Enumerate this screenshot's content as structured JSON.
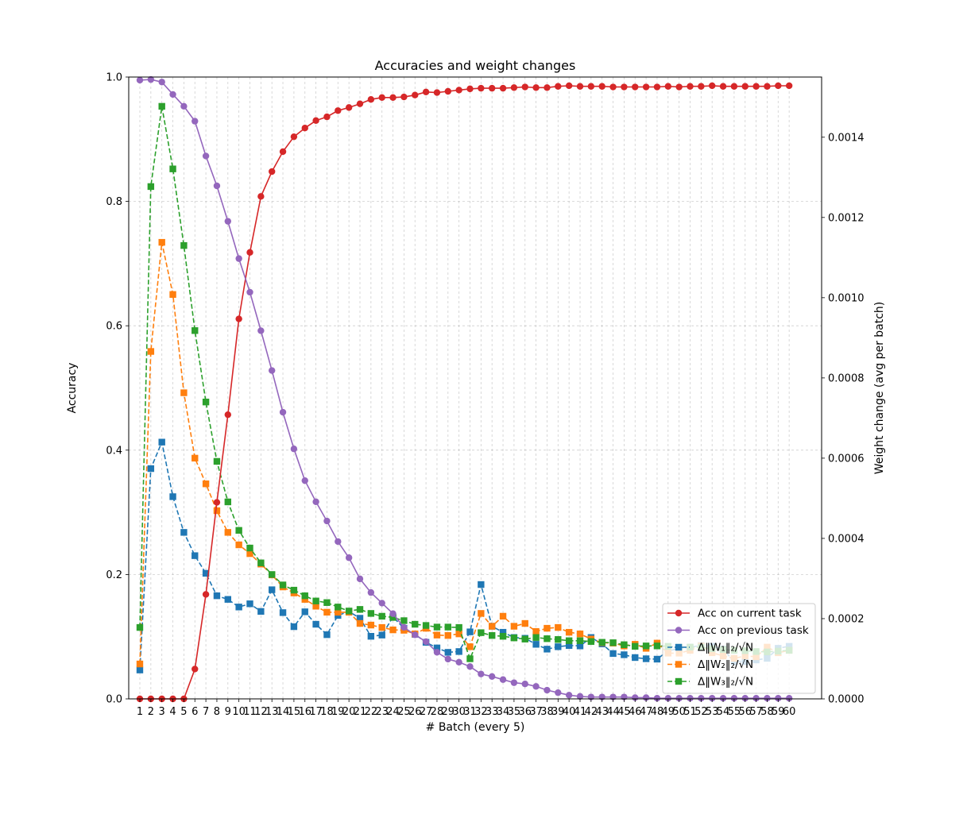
{
  "chart_data": {
    "type": "line",
    "title": "Accuracies and weight changes",
    "xlabel": "# Batch (every 5)",
    "ylabel_left": "Accuracy",
    "ylabel_right": "Weight change (avg per batch)",
    "ylim_left": [
      0,
      1
    ],
    "ylim_right": [
      0,
      0.00155
    ],
    "y_ticks_left": [
      "0.0",
      "0.2",
      "0.4",
      "0.6",
      "0.8",
      "1.0"
    ],
    "y_ticks_right": [
      "0.0000",
      "0.0002",
      "0.0004",
      "0.0006",
      "0.0008",
      "0.0010",
      "0.0012",
      "0.0014"
    ],
    "x": [
      1,
      2,
      3,
      4,
      5,
      6,
      7,
      8,
      9,
      10,
      11,
      12,
      13,
      14,
      15,
      16,
      17,
      18,
      19,
      20,
      21,
      22,
      23,
      24,
      25,
      26,
      27,
      28,
      29,
      30,
      31,
      32,
      33,
      34,
      35,
      36,
      37,
      38,
      39,
      40,
      41,
      42,
      43,
      44,
      45,
      46,
      47,
      48,
      49,
      50,
      51,
      52,
      53,
      54,
      55,
      56,
      57,
      58,
      59,
      60
    ],
    "grid": "dashed",
    "legend_position": "lower-right",
    "series": [
      {
        "name": "Acc on current task",
        "axis": "left",
        "color": "#d62728",
        "style": "solid",
        "marker": "circle",
        "values": [
          0,
          0,
          0,
          0,
          0,
          0.048,
          0.168,
          0.316,
          0.457,
          0.611,
          0.718,
          0.808,
          0.848,
          0.88,
          0.904,
          0.918,
          0.93,
          0.936,
          0.946,
          0.951,
          0.957,
          0.964,
          0.967,
          0.967,
          0.968,
          0.971,
          0.976,
          0.975,
          0.977,
          0.979,
          0.981,
          0.982,
          0.982,
          0.982,
          0.983,
          0.984,
          0.983,
          0.983,
          0.985,
          0.986,
          0.985,
          0.985,
          0.985,
          0.984,
          0.984,
          0.984,
          0.984,
          0.984,
          0.985,
          0.984,
          0.985,
          0.985,
          0.986,
          0.985,
          0.985,
          0.985,
          0.985,
          0.985,
          0.986,
          0.986
        ]
      },
      {
        "name": "Acc on previous task",
        "axis": "left",
        "color": "#9467bd",
        "style": "solid",
        "marker": "circle",
        "values": [
          0.995,
          0.996,
          0.992,
          0.972,
          0.953,
          0.929,
          0.873,
          0.825,
          0.768,
          0.708,
          0.654,
          0.592,
          0.528,
          0.461,
          0.402,
          0.351,
          0.317,
          0.286,
          0.253,
          0.227,
          0.193,
          0.171,
          0.154,
          0.137,
          0.115,
          0.103,
          0.092,
          0.075,
          0.064,
          0.059,
          0.052,
          0.04,
          0.036,
          0.031,
          0.026,
          0.024,
          0.02,
          0.014,
          0.01,
          0.006,
          0.004,
          0.003,
          0.003,
          0.003,
          0.003,
          0.002,
          0.002,
          0.001,
          0.001,
          0.001,
          0.001,
          0.001,
          0.001,
          0.001,
          0.001,
          0.001,
          0.001,
          0.001,
          0.001,
          0.001
        ]
      },
      {
        "name": "Δ‖W₁‖₂/√N",
        "axis": "right",
        "color": "#1f77b4",
        "style": "dashed",
        "marker": "square",
        "values": [
          7.2e-05,
          0.000574,
          0.00064,
          0.000504,
          0.000415,
          0.000357,
          0.000313,
          0.000257,
          0.000248,
          0.000229,
          0.000237,
          0.000218,
          0.000272,
          0.000215,
          0.00018,
          0.000217,
          0.000186,
          0.00016,
          0.000208,
          0.000218,
          0.000201,
          0.000156,
          0.000159,
          0.000204,
          0.000176,
          0.000161,
          0.000141,
          0.000127,
          0.000116,
          0.000118,
          0.000167,
          0.000285,
          0.000181,
          0.000166,
          0.000153,
          0.000151,
          0.000136,
          0.000124,
          0.00013,
          0.000133,
          0.000132,
          0.000153,
          0.000137,
          0.000113,
          0.00011,
          0.000103,
          0.0001,
          9.9e-05,
          0.00012,
          0.000125,
          0.000129,
          0.000133,
          0.000131,
          0.000124,
          9.3e-05,
          9.3e-05,
          9.7e-05,
          0.000101,
          0.000126,
          0.000131
        ]
      },
      {
        "name": "Δ‖W₂‖₂/√N",
        "axis": "right",
        "color": "#ff7f0e",
        "style": "dashed",
        "marker": "square",
        "values": [
          8.7e-05,
          0.000866,
          0.001138,
          0.001008,
          0.000763,
          0.0006,
          0.000536,
          0.000469,
          0.000415,
          0.000384,
          0.000362,
          0.000336,
          0.000309,
          0.000279,
          0.000264,
          0.000248,
          0.000231,
          0.000216,
          0.000216,
          0.000216,
          0.000188,
          0.000184,
          0.000178,
          0.000172,
          0.000171,
          0.000162,
          0.000176,
          0.000159,
          0.000158,
          0.000162,
          0.00013,
          0.000213,
          0.000181,
          0.000206,
          0.000181,
          0.000188,
          0.000168,
          0.000176,
          0.000178,
          0.000166,
          0.000162,
          0.000149,
          0.00014,
          0.000139,
          0.000132,
          0.000136,
          0.000126,
          0.000139,
          0.000114,
          0.000114,
          0.000121,
          0.000132,
          0.000115,
          0.000107,
          0.000101,
          0.000107,
          0.000105,
          0.000129,
          0.000115,
          0.000121
        ]
      },
      {
        "name": "Δ‖W₃‖₂/√N",
        "axis": "right",
        "color": "#2ca02c",
        "style": "dashed",
        "marker": "square",
        "values": [
          0.000178,
          0.001277,
          0.001477,
          0.001321,
          0.00113,
          0.000918,
          0.00074,
          0.000592,
          0.000491,
          0.00042,
          0.000376,
          0.000339,
          0.00031,
          0.000284,
          0.000271,
          0.000257,
          0.000244,
          0.00024,
          0.000229,
          0.000219,
          0.000223,
          0.000213,
          0.000206,
          0.000203,
          0.000195,
          0.000186,
          0.000183,
          0.000179,
          0.000179,
          0.000178,
          0.0001,
          0.000165,
          0.000158,
          0.000156,
          0.000152,
          0.000149,
          0.000153,
          0.00015,
          0.000148,
          0.000145,
          0.000145,
          0.000143,
          0.000141,
          0.00014,
          0.000135,
          0.000131,
          0.000132,
          0.000132,
          0.000131,
          0.000129,
          0.000129,
          0.000129,
          0.000125,
          0.000123,
          0.000121,
          0.00012,
          0.000118,
          0.000117,
          0.000119,
          0.000121
        ]
      }
    ]
  }
}
